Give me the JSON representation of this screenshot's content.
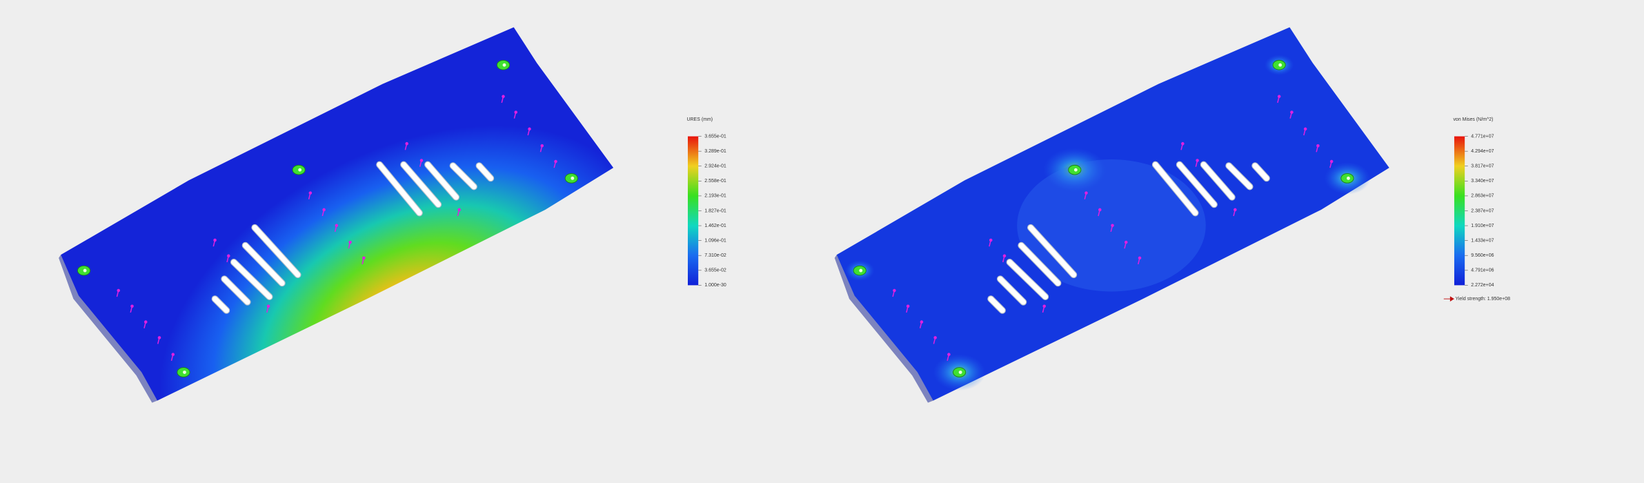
{
  "panels": [
    {
      "legend": {
        "title": "URES (mm)",
        "labels": [
          "3.655e-01",
          "3.289e-01",
          "2.924e-01",
          "2.558e-01",
          "2.193e-01",
          "1.827e-01",
          "1.462e-01",
          "1.096e-01",
          "7.310e-02",
          "3.655e-02",
          "1.000e-30"
        ]
      }
    },
    {
      "legend": {
        "title": "von Mises (N/m^2)",
        "labels": [
          "4.771e+07",
          "4.294e+07",
          "3.817e+07",
          "3.340e+07",
          "2.863e+07",
          "2.387e+07",
          "1.910e+07",
          "1.433e+07",
          "9.560e+06",
          "4.791e+06",
          "2.272e+04"
        ]
      },
      "yield_label": "Yield strength: 1.950e+08"
    }
  ]
}
